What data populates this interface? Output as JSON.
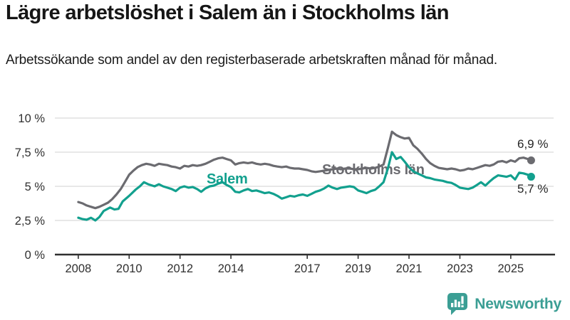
{
  "header": {
    "title": "Lägre arbetslöshet i Salem än i Stockholms län",
    "subtitle": "Arbetssökande som andel av den registerbaserade arbetskraften månad för månad."
  },
  "chart_data": {
    "type": "line",
    "title": "Lägre arbetslöshet i Salem än i Stockholms län",
    "xlabel": "",
    "ylabel": "",
    "grid": true,
    "legend_position": "inline-labels",
    "ylim": [
      0,
      10
    ],
    "xlim": [
      2007.08,
      2026.74
    ],
    "yticks": [
      {
        "value": 0,
        "label": "0 %"
      },
      {
        "value": 2.5,
        "label": "2,5 %"
      },
      {
        "value": 5,
        "label": "5 %"
      },
      {
        "value": 7.5,
        "label": "7,5 %"
      },
      {
        "value": 10,
        "label": "10 %"
      }
    ],
    "xticks": [
      {
        "value": 2008,
        "label": "2008"
      },
      {
        "value": 2010,
        "label": "2010"
      },
      {
        "value": 2012,
        "label": "2012"
      },
      {
        "value": 2014,
        "label": "2014"
      },
      {
        "value": 2017,
        "label": "2017"
      },
      {
        "value": 2019,
        "label": "2019"
      },
      {
        "value": 2021,
        "label": "2021"
      },
      {
        "value": 2023,
        "label": "2023"
      },
      {
        "value": 2025,
        "label": "2025"
      }
    ],
    "colors": {
      "grid": "#d9d9d9",
      "axis": "#2f2f2f",
      "tick_label": "#303030",
      "end_label": "#262626"
    },
    "series": [
      {
        "name": "Stockholms län",
        "color": "#6b6b70",
        "end_label": "6,9 %",
        "end_value": 6.9,
        "points": [
          [
            2008.0,
            3.85
          ],
          [
            2008.17,
            3.75
          ],
          [
            2008.33,
            3.6
          ],
          [
            2008.5,
            3.5
          ],
          [
            2008.67,
            3.4
          ],
          [
            2008.83,
            3.5
          ],
          [
            2009.0,
            3.65
          ],
          [
            2009.17,
            3.8
          ],
          [
            2009.33,
            4.05
          ],
          [
            2009.5,
            4.4
          ],
          [
            2009.67,
            4.8
          ],
          [
            2009.83,
            5.3
          ],
          [
            2010.0,
            5.85
          ],
          [
            2010.17,
            6.15
          ],
          [
            2010.33,
            6.4
          ],
          [
            2010.5,
            6.55
          ],
          [
            2010.67,
            6.65
          ],
          [
            2010.83,
            6.6
          ],
          [
            2011.0,
            6.5
          ],
          [
            2011.17,
            6.65
          ],
          [
            2011.33,
            6.6
          ],
          [
            2011.5,
            6.55
          ],
          [
            2011.67,
            6.45
          ],
          [
            2011.83,
            6.4
          ],
          [
            2012.0,
            6.3
          ],
          [
            2012.17,
            6.5
          ],
          [
            2012.33,
            6.45
          ],
          [
            2012.5,
            6.55
          ],
          [
            2012.67,
            6.5
          ],
          [
            2012.83,
            6.55
          ],
          [
            2013.0,
            6.65
          ],
          [
            2013.17,
            6.8
          ],
          [
            2013.33,
            6.95
          ],
          [
            2013.5,
            7.05
          ],
          [
            2013.67,
            7.1
          ],
          [
            2013.83,
            7.0
          ],
          [
            2014.0,
            6.9
          ],
          [
            2014.17,
            6.6
          ],
          [
            2014.33,
            6.7
          ],
          [
            2014.5,
            6.75
          ],
          [
            2014.67,
            6.7
          ],
          [
            2014.83,
            6.75
          ],
          [
            2015.0,
            6.65
          ],
          [
            2015.17,
            6.6
          ],
          [
            2015.33,
            6.65
          ],
          [
            2015.5,
            6.6
          ],
          [
            2015.67,
            6.5
          ],
          [
            2015.83,
            6.45
          ],
          [
            2016.0,
            6.4
          ],
          [
            2016.17,
            6.45
          ],
          [
            2016.33,
            6.35
          ],
          [
            2016.5,
            6.3
          ],
          [
            2016.67,
            6.3
          ],
          [
            2016.83,
            6.25
          ],
          [
            2017.0,
            6.2
          ],
          [
            2017.17,
            6.1
          ],
          [
            2017.33,
            6.05
          ],
          [
            2017.5,
            6.1
          ],
          [
            2017.67,
            6.15
          ],
          [
            2017.83,
            6.2
          ],
          [
            2018.0,
            6.25
          ],
          [
            2018.17,
            6.3
          ],
          [
            2018.33,
            6.25
          ],
          [
            2018.5,
            6.3
          ],
          [
            2018.67,
            6.3
          ],
          [
            2018.83,
            6.25
          ],
          [
            2019.0,
            6.25
          ],
          [
            2019.17,
            6.3
          ],
          [
            2019.33,
            6.35
          ],
          [
            2019.5,
            6.3
          ],
          [
            2019.67,
            6.35
          ],
          [
            2019.83,
            6.45
          ],
          [
            2020.0,
            6.6
          ],
          [
            2020.17,
            7.8
          ],
          [
            2020.33,
            9.0
          ],
          [
            2020.5,
            8.75
          ],
          [
            2020.67,
            8.6
          ],
          [
            2020.83,
            8.5
          ],
          [
            2021.0,
            8.55
          ],
          [
            2021.17,
            8.0
          ],
          [
            2021.33,
            7.75
          ],
          [
            2021.5,
            7.4
          ],
          [
            2021.67,
            7.0
          ],
          [
            2021.83,
            6.7
          ],
          [
            2022.0,
            6.5
          ],
          [
            2022.17,
            6.35
          ],
          [
            2022.33,
            6.3
          ],
          [
            2022.5,
            6.25
          ],
          [
            2022.67,
            6.3
          ],
          [
            2022.83,
            6.25
          ],
          [
            2023.0,
            6.15
          ],
          [
            2023.17,
            6.2
          ],
          [
            2023.33,
            6.3
          ],
          [
            2023.5,
            6.25
          ],
          [
            2023.67,
            6.35
          ],
          [
            2023.83,
            6.45
          ],
          [
            2024.0,
            6.55
          ],
          [
            2024.17,
            6.5
          ],
          [
            2024.33,
            6.6
          ],
          [
            2024.5,
            6.8
          ],
          [
            2024.67,
            6.85
          ],
          [
            2024.83,
            6.75
          ],
          [
            2025.0,
            6.9
          ],
          [
            2025.17,
            6.8
          ],
          [
            2025.33,
            7.05
          ],
          [
            2025.5,
            7.1
          ],
          [
            2025.67,
            7.0
          ],
          [
            2025.8,
            6.9
          ]
        ]
      },
      {
        "name": "Salem",
        "color": "#12a08e",
        "end_label": "5,7 %",
        "end_value": 5.7,
        "points": [
          [
            2008.0,
            2.7
          ],
          [
            2008.17,
            2.6
          ],
          [
            2008.33,
            2.55
          ],
          [
            2008.5,
            2.7
          ],
          [
            2008.67,
            2.5
          ],
          [
            2008.83,
            2.75
          ],
          [
            2009.0,
            3.2
          ],
          [
            2009.25,
            3.45
          ],
          [
            2009.42,
            3.3
          ],
          [
            2009.58,
            3.35
          ],
          [
            2009.75,
            3.9
          ],
          [
            2010.0,
            4.3
          ],
          [
            2010.25,
            4.75
          ],
          [
            2010.42,
            5.0
          ],
          [
            2010.58,
            5.3
          ],
          [
            2010.75,
            5.15
          ],
          [
            2011.0,
            5.0
          ],
          [
            2011.17,
            5.15
          ],
          [
            2011.33,
            5.0
          ],
          [
            2011.5,
            4.9
          ],
          [
            2011.67,
            4.8
          ],
          [
            2011.83,
            4.65
          ],
          [
            2012.0,
            4.9
          ],
          [
            2012.17,
            5.0
          ],
          [
            2012.33,
            4.9
          ],
          [
            2012.5,
            4.95
          ],
          [
            2012.67,
            4.8
          ],
          [
            2012.83,
            4.6
          ],
          [
            2013.0,
            4.85
          ],
          [
            2013.17,
            5.0
          ],
          [
            2013.33,
            5.05
          ],
          [
            2013.5,
            5.2
          ],
          [
            2013.67,
            5.3
          ],
          [
            2013.83,
            5.1
          ],
          [
            2014.0,
            4.95
          ],
          [
            2014.17,
            4.6
          ],
          [
            2014.33,
            4.55
          ],
          [
            2014.5,
            4.7
          ],
          [
            2014.67,
            4.8
          ],
          [
            2014.83,
            4.65
          ],
          [
            2015.0,
            4.7
          ],
          [
            2015.17,
            4.6
          ],
          [
            2015.33,
            4.5
          ],
          [
            2015.5,
            4.55
          ],
          [
            2015.67,
            4.45
          ],
          [
            2015.83,
            4.3
          ],
          [
            2016.0,
            4.1
          ],
          [
            2016.17,
            4.2
          ],
          [
            2016.33,
            4.3
          ],
          [
            2016.5,
            4.25
          ],
          [
            2016.67,
            4.35
          ],
          [
            2016.83,
            4.4
          ],
          [
            2017.0,
            4.3
          ],
          [
            2017.17,
            4.45
          ],
          [
            2017.33,
            4.6
          ],
          [
            2017.5,
            4.7
          ],
          [
            2017.67,
            4.85
          ],
          [
            2017.83,
            5.05
          ],
          [
            2018.0,
            4.9
          ],
          [
            2018.17,
            4.8
          ],
          [
            2018.33,
            4.9
          ],
          [
            2018.5,
            4.95
          ],
          [
            2018.67,
            5.0
          ],
          [
            2018.83,
            4.95
          ],
          [
            2019.0,
            4.7
          ],
          [
            2019.17,
            4.6
          ],
          [
            2019.33,
            4.5
          ],
          [
            2019.5,
            4.65
          ],
          [
            2019.67,
            4.75
          ],
          [
            2019.83,
            5.0
          ],
          [
            2020.0,
            5.3
          ],
          [
            2020.17,
            6.3
          ],
          [
            2020.33,
            7.5
          ],
          [
            2020.5,
            7.0
          ],
          [
            2020.67,
            7.15
          ],
          [
            2020.83,
            6.8
          ],
          [
            2021.0,
            6.4
          ],
          [
            2021.17,
            6.1
          ],
          [
            2021.33,
            5.95
          ],
          [
            2021.5,
            5.8
          ],
          [
            2021.67,
            5.65
          ],
          [
            2021.83,
            5.6
          ],
          [
            2022.0,
            5.5
          ],
          [
            2022.17,
            5.45
          ],
          [
            2022.33,
            5.4
          ],
          [
            2022.5,
            5.3
          ],
          [
            2022.67,
            5.25
          ],
          [
            2022.83,
            5.1
          ],
          [
            2023.0,
            4.9
          ],
          [
            2023.17,
            4.85
          ],
          [
            2023.33,
            4.8
          ],
          [
            2023.5,
            4.9
          ],
          [
            2023.67,
            5.1
          ],
          [
            2023.83,
            5.3
          ],
          [
            2024.0,
            5.05
          ],
          [
            2024.17,
            5.35
          ],
          [
            2024.33,
            5.6
          ],
          [
            2024.5,
            5.8
          ],
          [
            2024.67,
            5.75
          ],
          [
            2024.83,
            5.7
          ],
          [
            2025.0,
            5.8
          ],
          [
            2025.17,
            5.5
          ],
          [
            2025.33,
            6.0
          ],
          [
            2025.5,
            5.95
          ],
          [
            2025.67,
            5.85
          ],
          [
            2025.8,
            5.7
          ]
        ]
      }
    ]
  },
  "branding": {
    "logo_text": "Newsworthy",
    "logo_color": "#3b9e94",
    "icon": "bar-chart-speech-bubble-icon"
  }
}
